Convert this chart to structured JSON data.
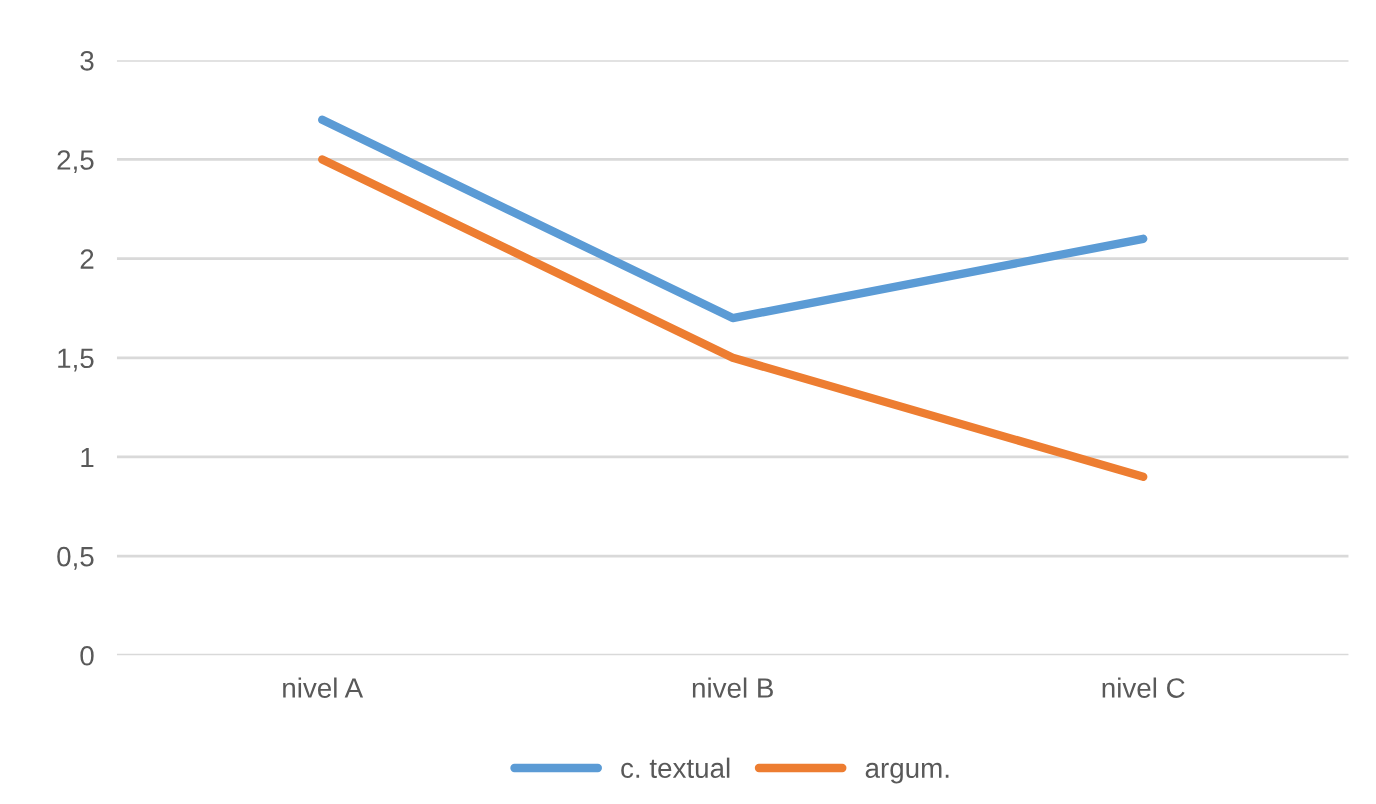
{
  "chart_data": {
    "type": "line",
    "categories": [
      "nivel A",
      "nivel B",
      "nivel C"
    ],
    "series": [
      {
        "name": "c. textual",
        "color": "#5b9bd5",
        "values": [
          2.7,
          1.7,
          2.1
        ]
      },
      {
        "name": "argum.",
        "color": "#ed7d31",
        "values": [
          2.5,
          1.5,
          0.9
        ]
      }
    ],
    "ylim": [
      0,
      3
    ],
    "yticks": [
      0,
      {
        "value": 0.5,
        "label": "0,5"
      },
      1,
      {
        "value": 1.5,
        "label": "1,5"
      },
      2,
      {
        "value": 2.5,
        "label": "2,5"
      },
      3
    ],
    "grid": "y",
    "legend": "bottom",
    "line_style": "solid",
    "marker": "none"
  }
}
